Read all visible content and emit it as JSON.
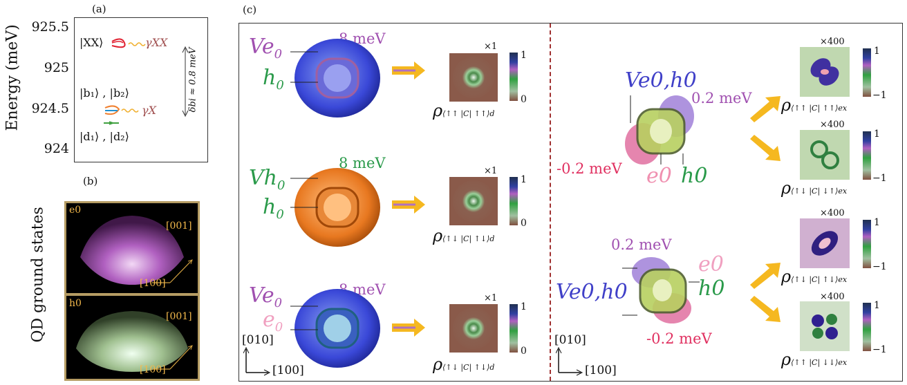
{
  "panel_a": {
    "label": "(a)",
    "ylabel": "Energy (meV)",
    "yticks": [
      "925.5",
      "925",
      "924.5",
      "924"
    ],
    "xx_label": "|XX⟩",
    "gamma_xx": "γXX",
    "b_label": "|b₁⟩ , |b₂⟩",
    "gamma_x": "γX",
    "d_label": "|d₁⟩ , |d₂⟩",
    "delta_label": "δbi ≈ 0.8 meV"
  },
  "panel_b": {
    "label": "(b)",
    "side_label": "QD ground states",
    "e0": {
      "name": "e0",
      "dir1": "[001]",
      "dir2": "[100]"
    },
    "h0": {
      "name": "h0",
      "dir1": "[001]",
      "dir2": "[100]"
    }
  },
  "panel_c": {
    "label": "(c)",
    "left_rows": [
      {
        "top": "Ve",
        "top_sub": "0",
        "bottom": "h",
        "bottom_sub": "0",
        "energy": "8 meV",
        "mult": "×1",
        "cb_max": "1",
        "cb_min": "0",
        "rho": "ρ",
        "rho_sub": "⟨↑↑ |C| ↑↑⟩d"
      },
      {
        "top": "Vh",
        "top_sub": "0",
        "bottom": "h",
        "bottom_sub": "0",
        "energy": "8 meV",
        "mult": "×1",
        "cb_max": "1",
        "cb_min": "0",
        "rho": "ρ",
        "rho_sub": "⟨↑↓ |C| ↑↓⟩d"
      },
      {
        "top": "Ve",
        "top_sub": "0",
        "bottom": "e",
        "bottom_sub": "0",
        "energy": "8 meV",
        "mult": "×1",
        "cb_max": "1",
        "cb_min": "0",
        "rho": "ρ",
        "rho_sub": "⟨↑↓ |C| ↑↓⟩d"
      }
    ],
    "right_top": {
      "top": "Ve0,h0",
      "pos": "0.2 meV",
      "neg": "-0.2 meV",
      "e": "e0",
      "h": "h0"
    },
    "right_bottom": {
      "top": "0.2 meV",
      "e": "e0",
      "left": "Ve0,h0",
      "h": "h0",
      "neg": "-0.2 meV"
    },
    "right_maps": [
      {
        "mult": "×400",
        "cb_max": "1",
        "cb_min": "−1",
        "rho": "ρ",
        "rho_sub": "⟨↑↑ |C| ↑↑⟩ex"
      },
      {
        "mult": "×400",
        "cb_max": "1",
        "cb_min": "−1",
        "rho": "ρ",
        "rho_sub": "⟨↑↓ |C| ↓↑⟩ex"
      },
      {
        "mult": "×400",
        "cb_max": "1",
        "cb_min": "−1",
        "rho": "ρ",
        "rho_sub": "⟨↑↓ |C| ↑↓⟩ex"
      },
      {
        "mult": "×400",
        "cb_max": "1",
        "cb_min": "−1",
        "rho": "ρ",
        "rho_sub": "⟨↑↑ |C| ↓↓⟩ex"
      }
    ],
    "axis_left": {
      "y": "[010]",
      "x": "[100]"
    },
    "axis_right": {
      "y": "[010]",
      "x": "[100]"
    }
  },
  "colors": {
    "purple": "#a050b0",
    "green": "#2a9a4a",
    "pink": "#f080b0",
    "blue": "#4040c8",
    "orange_arrow": "#f5b820",
    "dashed": "#a03030"
  }
}
